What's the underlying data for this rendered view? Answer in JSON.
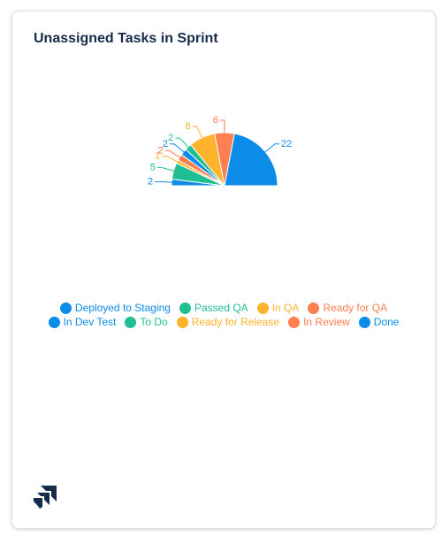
{
  "card": {
    "title": "Unassigned Tasks in Sprint"
  },
  "logo_icon": "jira-logo-icon",
  "chart_data": {
    "type": "pie",
    "variant": "half-donut-top",
    "title": "Unassigned Tasks in Sprint",
    "slices": [
      {
        "label": "Deployed to Staging",
        "value": 2,
        "color": "#0c8ce9"
      },
      {
        "label": "Passed QA",
        "value": 5,
        "color": "#1fbf93"
      },
      {
        "label": "In QA",
        "value": 1,
        "color": "#ffb32c"
      },
      {
        "label": "Ready for QA",
        "value": 2,
        "color": "#ff7f50"
      },
      {
        "label": "In Dev Test",
        "value": 2,
        "color": "#0c8ce9"
      },
      {
        "label": "To Do",
        "value": 2,
        "color": "#1fbf93"
      },
      {
        "label": "Ready for Release",
        "value": 8,
        "color": "#ffb32c"
      },
      {
        "label": "In Review",
        "value": 6,
        "color": "#ff7f50"
      },
      {
        "label": "Done",
        "value": 22,
        "color": "#0c8ce9"
      }
    ],
    "legend": {
      "placement": "bottom-center",
      "rows": [
        [
          "Deployed to Staging",
          "Passed QA",
          "In QA",
          "Ready for QA"
        ],
        [
          "In Dev Test",
          "To Do",
          "Ready for Release",
          "In Review",
          "Done"
        ]
      ]
    }
  }
}
